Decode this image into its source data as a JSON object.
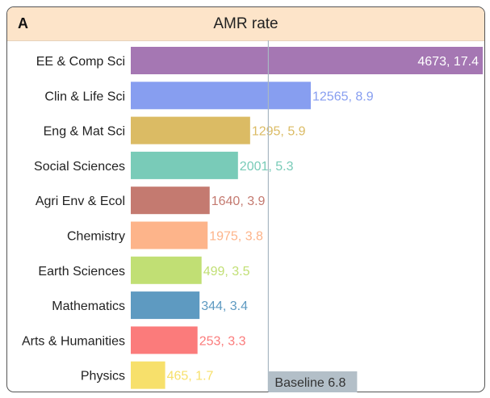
{
  "panel_label": "A",
  "chart_data": {
    "type": "bar",
    "orientation": "horizontal",
    "title": "AMR rate",
    "categories": [
      "EE & Comp Sci",
      "Clin & Life Sci",
      "Eng & Mat Sci",
      "Social Sciences",
      "Agri Env & Ecol",
      "Chemistry",
      "Earth Sciences",
      "Mathematics",
      "Arts & Humanities",
      "Physics"
    ],
    "values": [
      17.4,
      8.9,
      5.9,
      5.3,
      3.9,
      3.8,
      3.5,
      3.4,
      3.3,
      1.7
    ],
    "counts": [
      4673,
      12565,
      1295,
      2001,
      1640,
      1975,
      499,
      344,
      253,
      465
    ],
    "value_labels": [
      "4673, 17.4",
      "12565, 8.9",
      "1295, 5.9",
      "2001, 5.3",
      "1640, 3.9",
      "1975, 3.8",
      "499, 3.5",
      "344, 3.4",
      "253, 3.3",
      "465, 1.7"
    ],
    "colors": [
      "#a577b3",
      "#879ef0",
      "#dbbb64",
      "#79cbb8",
      "#c47a70",
      "#fdb48a",
      "#c1df74",
      "#5e9ac1",
      "#fb7b7b",
      "#f7e06b"
    ],
    "xlim": [
      0,
      17.4
    ],
    "baseline": {
      "value": 6.8,
      "label": "Baseline 6.8",
      "color": "#a9b8c2"
    },
    "grid": false
  }
}
